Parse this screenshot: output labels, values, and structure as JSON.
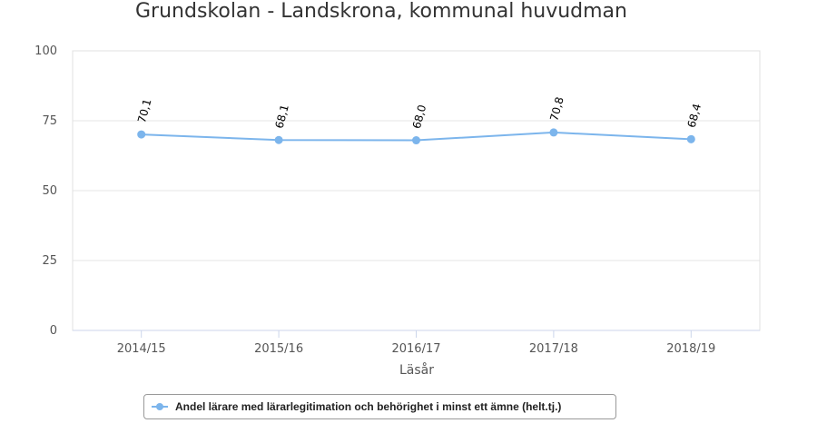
{
  "chart_data": {
    "type": "line",
    "title": "Grundskolan - Landskrona, kommunal huvudman",
    "xlabel": "Läsår",
    "ylabel": "",
    "ylim": [
      0,
      100
    ],
    "yticks": [
      0,
      25,
      50,
      75,
      100
    ],
    "categories": [
      "2014/15",
      "2015/16",
      "2016/17",
      "2017/18",
      "2018/19"
    ],
    "data_labels": [
      "70,1",
      "68,1",
      "68,0",
      "70,8",
      "68,4"
    ],
    "series": [
      {
        "name": "Andel lärare med lärarlegitimation och behörighet i minst ett ämne (helt.tj.)",
        "values": [
          70.1,
          68.1,
          68.0,
          70.8,
          68.4
        ],
        "color": "#7cb5ec"
      }
    ],
    "grid": true,
    "legend": "bottom-center"
  }
}
